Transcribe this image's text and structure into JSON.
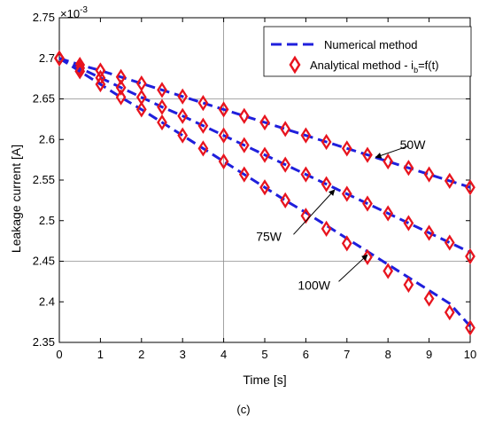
{
  "chart_data": {
    "type": "line",
    "xlabel": "Time [s]",
    "ylabel": "Leakage current [A]",
    "y_multiplier_base": "×10",
    "y_multiplier_exp": "-3",
    "caption": "(c)",
    "xlim": [
      0,
      10
    ],
    "ylim": [
      2.35,
      2.75
    ],
    "x_ticks": [
      0,
      1,
      2,
      3,
      4,
      5,
      6,
      7,
      8,
      9,
      10
    ],
    "x_tick_labels": [
      "0",
      "1",
      "2",
      "3",
      "4",
      "5",
      "6",
      "7",
      "8",
      "9",
      "10"
    ],
    "y_ticks": [
      2.35,
      2.4,
      2.45,
      2.5,
      2.55,
      2.6,
      2.65,
      2.7,
      2.75
    ],
    "y_tick_labels": [
      "2.35",
      "2.4",
      "2.45",
      "2.5",
      "2.55",
      "2.6",
      "2.65",
      "2.7",
      "2.75"
    ],
    "grid": {
      "x": [
        4
      ],
      "y": [
        2.45,
        2.65
      ]
    },
    "legend": {
      "position": "top-right",
      "numerical": "Numerical method",
      "analytical_prefix": "Analytical method - i",
      "analytical_sub": "b",
      "analytical_suffix": "=f(t)"
    },
    "colors": {
      "numerical": "#1f1fdc",
      "analytical": "#e8141e"
    },
    "x": [
      0,
      0.5,
      1,
      1.5,
      2,
      2.5,
      3,
      3.5,
      4,
      4.5,
      5,
      5.5,
      6,
      6.5,
      7,
      7.5,
      8,
      8.5,
      9,
      9.5,
      10
    ],
    "series": [
      {
        "label": "50W",
        "numerical": [
          2.7,
          2.692,
          2.685,
          2.677,
          2.669,
          2.661,
          2.653,
          2.645,
          2.637,
          2.629,
          2.621,
          2.613,
          2.605,
          2.597,
          2.589,
          2.581,
          2.573,
          2.565,
          2.557,
          2.549,
          2.541
        ],
        "analytical": [
          2.7,
          2.692,
          2.685,
          2.677,
          2.669,
          2.661,
          2.653,
          2.645,
          2.637,
          2.629,
          2.621,
          2.613,
          2.605,
          2.597,
          2.589,
          2.581,
          2.573,
          2.565,
          2.557,
          2.549,
          2.541
        ]
      },
      {
        "label": "75W",
        "numerical": [
          2.7,
          2.688,
          2.676,
          2.664,
          2.652,
          2.64,
          2.629,
          2.617,
          2.605,
          2.593,
          2.581,
          2.569,
          2.557,
          2.545,
          2.533,
          2.521,
          2.509,
          2.497,
          2.485,
          2.473,
          2.461
        ],
        "analytical": [
          2.7,
          2.688,
          2.676,
          2.664,
          2.652,
          2.64,
          2.629,
          2.617,
          2.605,
          2.593,
          2.581,
          2.569,
          2.557,
          2.545,
          2.533,
          2.521,
          2.509,
          2.497,
          2.485,
          2.473,
          2.456
        ]
      },
      {
        "label": "100W",
        "numerical": [
          2.7,
          2.684,
          2.668,
          2.652,
          2.637,
          2.621,
          2.605,
          2.589,
          2.573,
          2.557,
          2.541,
          2.525,
          2.51,
          2.494,
          2.478,
          2.462,
          2.446,
          2.43,
          2.414,
          2.398,
          2.37
        ],
        "analytical": [
          2.7,
          2.684,
          2.668,
          2.652,
          2.637,
          2.621,
          2.605,
          2.589,
          2.573,
          2.557,
          2.541,
          2.525,
          2.506,
          2.49,
          2.472,
          2.455,
          2.438,
          2.421,
          2.404,
          2.387,
          2.368
        ]
      }
    ],
    "annotations": [
      {
        "text": "50W",
        "arrow_to": [
          7.7,
          2.578
        ]
      },
      {
        "text": "75W",
        "arrow_to": [
          6.7,
          2.538
        ]
      },
      {
        "text": "100W",
        "arrow_to": [
          7.5,
          2.458
        ]
      }
    ]
  }
}
